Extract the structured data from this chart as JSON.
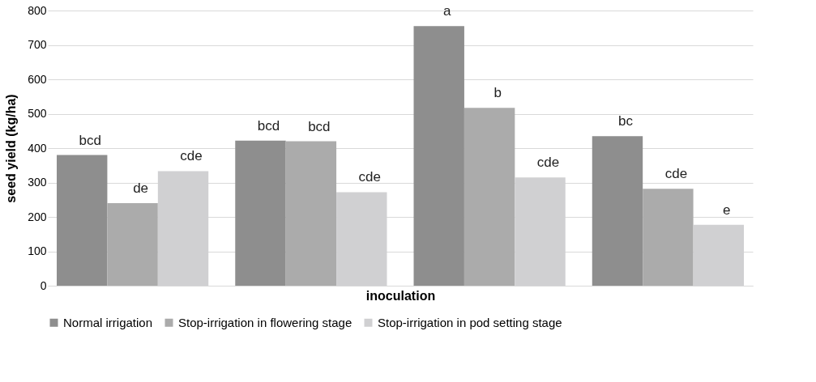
{
  "chart_data": {
    "type": "bar",
    "xlabel": "inoculation",
    "ylabel": "seed yield (kg/ha)",
    "categories": [
      null,
      null,
      null,
      null
    ],
    "series": [
      {
        "name": "Normal irrigation",
        "color": "#8e8e8e",
        "values": [
          380,
          422,
          755,
          435
        ],
        "value_labels": [
          "bcd",
          "bcd",
          "a",
          "bc"
        ]
      },
      {
        "name": "Stop-irrigation in flowering stage",
        "color": "#ababab",
        "values": [
          240,
          420,
          517,
          282
        ],
        "value_labels": [
          "de",
          "bcd",
          "b",
          "cde"
        ]
      },
      {
        "name": "Stop-irrigation in pod setting stage",
        "color": "#d0d0d2",
        "values": [
          333,
          272,
          315,
          177
        ],
        "value_labels": [
          "cde",
          "cde",
          "cde",
          "e"
        ]
      }
    ],
    "ylim": [
      0,
      800
    ],
    "yticks": [
      0,
      100,
      200,
      300,
      400,
      500,
      600,
      700,
      800
    ],
    "grid": "y",
    "legend": "bottom",
    "tick_labels": "y"
  }
}
